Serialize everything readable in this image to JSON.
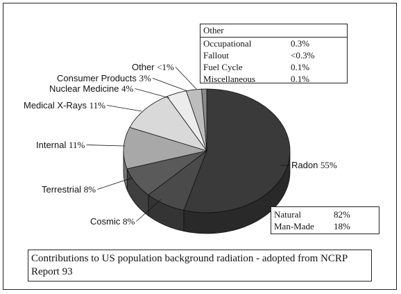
{
  "chart_data": {
    "type": "pie",
    "title": "Contributions to US population background radiation - adopted from NCRP Report 93",
    "slices": [
      {
        "name": "Radon",
        "value": 55,
        "label": "55%",
        "color": "#3a3a3a"
      },
      {
        "name": "Cosmic",
        "value": 8,
        "label": "8%",
        "color": "#4a4a4a"
      },
      {
        "name": "Terrestrial",
        "value": 8,
        "label": "8%",
        "color": "#5a5a5a"
      },
      {
        "name": "Internal",
        "value": 11,
        "label": "11%",
        "color": "#a8a8a8"
      },
      {
        "name": "Medical X-Rays",
        "value": 11,
        "label": "11%",
        "color": "#d9d9d9"
      },
      {
        "name": "Nuclear Medicine",
        "value": 4,
        "label": "4%",
        "color": "#ececec"
      },
      {
        "name": "Consumer Products",
        "value": 3,
        "label": "3%",
        "color": "#bdbdbd"
      },
      {
        "name": "Other",
        "value": 1,
        "label": "<1%",
        "color": "#8a8a8a"
      }
    ],
    "other_table": {
      "title": "Other",
      "rows": [
        {
          "name": "Occupational",
          "value": "0.3%"
        },
        {
          "name": "Fallout",
          "value": "<0.3%"
        },
        {
          "name": "Fuel Cycle",
          "value": "0.1%"
        },
        {
          "name": "Miscellaneous",
          "value": "0.1%"
        }
      ]
    },
    "summary_table": {
      "rows": [
        {
          "name": "Natural",
          "value": "82%"
        },
        {
          "name": "Man-Made",
          "value": "18%"
        }
      ]
    }
  }
}
